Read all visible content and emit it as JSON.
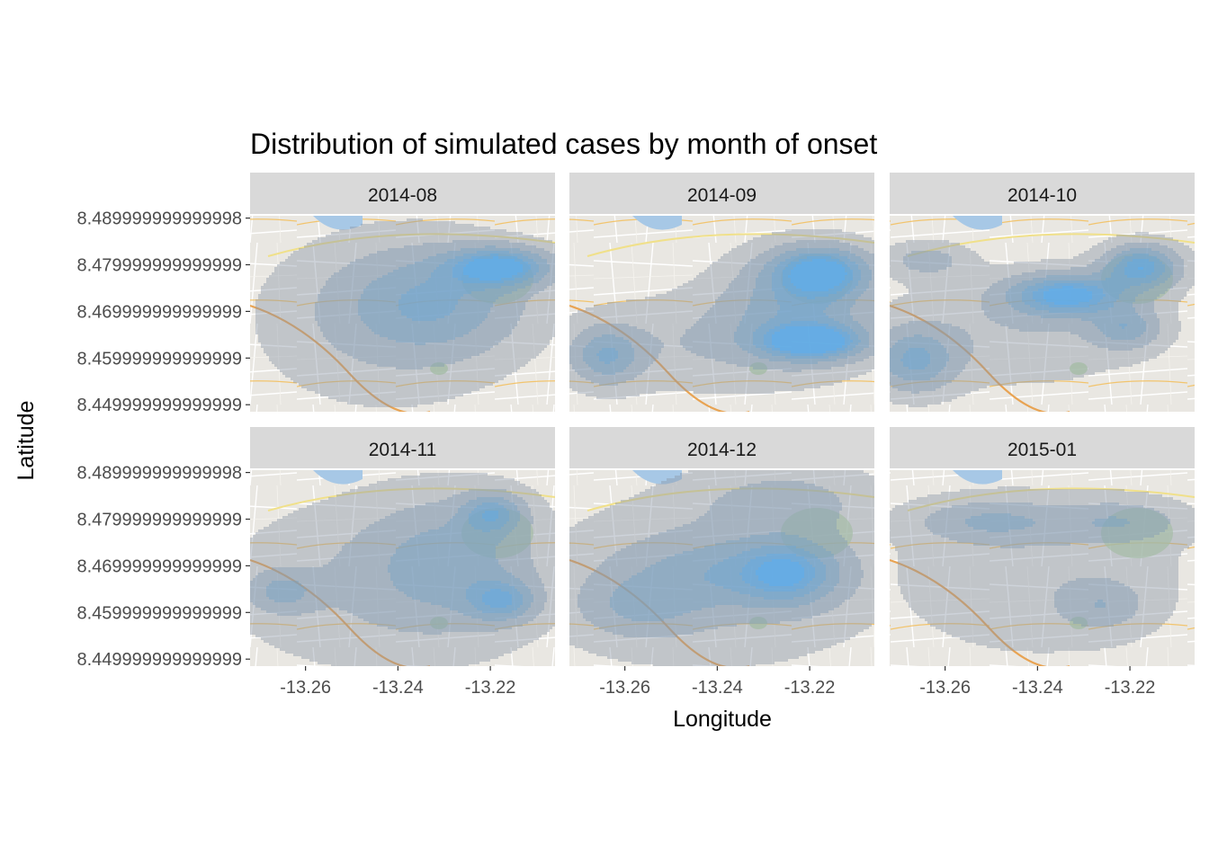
{
  "chart_data": {
    "type": "heatmap",
    "title": "Distribution of simulated cases by month of onset",
    "xlabel": "Longitude",
    "ylabel": "Latitude",
    "xlim": [
      -13.272,
      -13.206
    ],
    "ylim": [
      8.4485,
      8.4905
    ],
    "x_ticks": [
      -13.26,
      -13.24,
      -13.22
    ],
    "x_tick_labels": [
      "-13.26",
      "-13.24",
      "-13.22"
    ],
    "y_ticks": [
      8.45,
      8.46,
      8.47,
      8.48,
      8.49
    ],
    "y_tick_labels": [
      "8.449999999999999",
      "8.459999999999999",
      "8.469999999999999",
      "8.479999999999999",
      "8.489999999999998"
    ],
    "grid": false,
    "basemap": "street map (background)",
    "fill_color_low": "#8a97a6",
    "fill_color_high": "#56b1f7",
    "panels": [
      {
        "label": "2014-08",
        "hotspots": [
          {
            "x": -13.218,
            "y": 8.4795,
            "sx": 0.0075,
            "sy": 0.0028,
            "w": 1.0
          },
          {
            "x": -13.232,
            "y": 8.472,
            "sx": 0.013,
            "sy": 0.0075,
            "w": 0.5
          },
          {
            "x": -13.243,
            "y": 8.468,
            "sx": 0.018,
            "sy": 0.012,
            "w": 0.22
          }
        ]
      },
      {
        "label": "2014-09",
        "hotspots": [
          {
            "x": -13.2175,
            "y": 8.4785,
            "sx": 0.007,
            "sy": 0.0035,
            "w": 0.95
          },
          {
            "x": -13.2195,
            "y": 8.4635,
            "sx": 0.0075,
            "sy": 0.0025,
            "w": 1.05
          },
          {
            "x": -13.222,
            "y": 8.471,
            "sx": 0.011,
            "sy": 0.0075,
            "w": 0.55
          },
          {
            "x": -13.264,
            "y": 8.4605,
            "sx": 0.005,
            "sy": 0.004,
            "w": 0.55
          },
          {
            "x": -13.245,
            "y": 8.463,
            "sx": 0.02,
            "sy": 0.007,
            "w": 0.2
          }
        ]
      },
      {
        "label": "2014-10",
        "hotspots": [
          {
            "x": -13.2335,
            "y": 8.4735,
            "sx": 0.0085,
            "sy": 0.003,
            "w": 1.0
          },
          {
            "x": -13.2175,
            "y": 8.4795,
            "sx": 0.0055,
            "sy": 0.0032,
            "w": 0.9
          },
          {
            "x": -13.221,
            "y": 8.4665,
            "sx": 0.005,
            "sy": 0.003,
            "w": 0.5
          },
          {
            "x": -13.2665,
            "y": 8.4595,
            "sx": 0.006,
            "sy": 0.0045,
            "w": 0.62
          },
          {
            "x": -13.264,
            "y": 8.481,
            "sx": 0.006,
            "sy": 0.0025,
            "w": 0.3
          },
          {
            "x": -13.245,
            "y": 8.466,
            "sx": 0.02,
            "sy": 0.008,
            "w": 0.2
          }
        ]
      },
      {
        "label": "2014-11",
        "hotspots": [
          {
            "x": -13.2195,
            "y": 8.4812,
            "sx": 0.0045,
            "sy": 0.003,
            "w": 0.62
          },
          {
            "x": -13.2175,
            "y": 8.4625,
            "sx": 0.005,
            "sy": 0.003,
            "w": 0.62
          },
          {
            "x": -13.228,
            "y": 8.471,
            "sx": 0.012,
            "sy": 0.009,
            "w": 0.42
          },
          {
            "x": -13.265,
            "y": 8.4645,
            "sx": 0.005,
            "sy": 0.003,
            "w": 0.4
          },
          {
            "x": -13.244,
            "y": 8.466,
            "sx": 0.022,
            "sy": 0.012,
            "w": 0.22
          }
        ]
      },
      {
        "label": "2014-12",
        "hotspots": [
          {
            "x": -13.2245,
            "y": 8.4685,
            "sx": 0.007,
            "sy": 0.0045,
            "w": 0.62
          },
          {
            "x": -13.237,
            "y": 8.4685,
            "sx": 0.016,
            "sy": 0.0055,
            "w": 0.4
          },
          {
            "x": -13.257,
            "y": 8.461,
            "sx": 0.009,
            "sy": 0.0045,
            "w": 0.32
          },
          {
            "x": -13.225,
            "y": 8.484,
            "sx": 0.013,
            "sy": 0.005,
            "w": 0.25
          },
          {
            "x": -13.24,
            "y": 8.467,
            "sx": 0.025,
            "sy": 0.013,
            "w": 0.2
          }
        ]
      },
      {
        "label": "2015-01",
        "hotspots": [
          {
            "x": -13.25,
            "y": 8.4795,
            "sx": 0.011,
            "sy": 0.003,
            "w": 0.38
          },
          {
            "x": -13.222,
            "y": 8.4795,
            "sx": 0.009,
            "sy": 0.003,
            "w": 0.34
          },
          {
            "x": -13.226,
            "y": 8.4615,
            "sx": 0.006,
            "sy": 0.0035,
            "w": 0.3
          },
          {
            "x": -13.24,
            "y": 8.468,
            "sx": 0.022,
            "sy": 0.012,
            "w": 0.18
          }
        ]
      }
    ]
  }
}
